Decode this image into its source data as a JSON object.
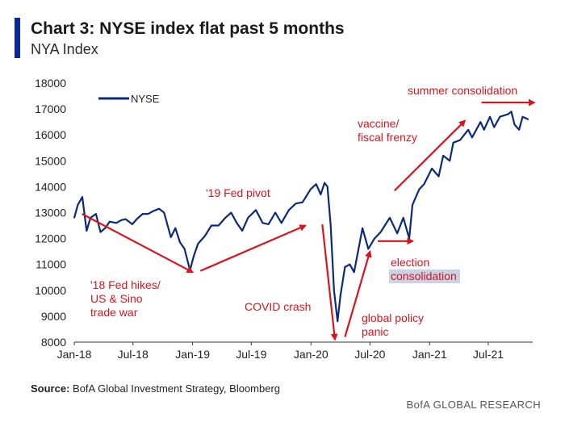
{
  "header": {
    "title": "Chart 3: NYSE index flat past 5 months",
    "subtitle": "NYA Index"
  },
  "colors": {
    "series": "#0b2a7a",
    "annotation": "#d9141e",
    "accent_bar": "#0a2896",
    "highlight": "#c8d4e6"
  },
  "chart_data": {
    "type": "line",
    "x_tick_labels": [
      "Jan-18",
      "Jul-18",
      "Jan-19",
      "Jul-19",
      "Jan-20",
      "Jul-20",
      "Jan-21",
      "Jul-21"
    ],
    "x_range": [
      "2018-01-01",
      "2021-11-15"
    ],
    "ylim": [
      8000,
      18000
    ],
    "y_ticks": [
      8000,
      9000,
      10000,
      11000,
      12000,
      13000,
      14000,
      15000,
      16000,
      17000,
      18000
    ],
    "grid": false,
    "legend": "top-left",
    "series": [
      {
        "name": "NYSE",
        "points": [
          [
            "2018-01-01",
            12800
          ],
          [
            "2018-01-12",
            13300
          ],
          [
            "2018-01-26",
            13600
          ],
          [
            "2018-02-08",
            12300
          ],
          [
            "2018-02-20",
            12800
          ],
          [
            "2018-03-09",
            12950
          ],
          [
            "2018-03-23",
            12250
          ],
          [
            "2018-04-06",
            12400
          ],
          [
            "2018-04-20",
            12650
          ],
          [
            "2018-05-11",
            12600
          ],
          [
            "2018-05-25",
            12700
          ],
          [
            "2018-06-08",
            12750
          ],
          [
            "2018-06-29",
            12550
          ],
          [
            "2018-07-13",
            12750
          ],
          [
            "2018-07-31",
            12950
          ],
          [
            "2018-08-17",
            12950
          ],
          [
            "2018-08-31",
            13050
          ],
          [
            "2018-09-20",
            13150
          ],
          [
            "2018-10-05",
            13000
          ],
          [
            "2018-10-26",
            12050
          ],
          [
            "2018-11-09",
            12400
          ],
          [
            "2018-11-23",
            11850
          ],
          [
            "2018-12-07",
            11600
          ],
          [
            "2018-12-24",
            10770
          ],
          [
            "2019-01-04",
            11300
          ],
          [
            "2019-01-18",
            11800
          ],
          [
            "2019-02-08",
            12100
          ],
          [
            "2019-02-28",
            12500
          ],
          [
            "2019-03-22",
            12500
          ],
          [
            "2019-04-12",
            12800
          ],
          [
            "2019-04-30",
            13000
          ],
          [
            "2019-05-17",
            12600
          ],
          [
            "2019-06-03",
            12300
          ],
          [
            "2019-06-21",
            12800
          ],
          [
            "2019-07-15",
            13100
          ],
          [
            "2019-08-05",
            12600
          ],
          [
            "2019-08-23",
            12550
          ],
          [
            "2019-09-13",
            13000
          ],
          [
            "2019-10-02",
            12600
          ],
          [
            "2019-10-25",
            13100
          ],
          [
            "2019-11-15",
            13350
          ],
          [
            "2019-12-06",
            13400
          ],
          [
            "2019-12-31",
            13900
          ],
          [
            "2020-01-17",
            14100
          ],
          [
            "2020-01-31",
            13700
          ],
          [
            "2020-02-12",
            14150
          ],
          [
            "2020-02-21",
            14000
          ],
          [
            "2020-03-02",
            12500
          ],
          [
            "2020-03-12",
            10000
          ],
          [
            "2020-03-23",
            8800
          ],
          [
            "2020-04-01",
            9800
          ],
          [
            "2020-04-15",
            10900
          ],
          [
            "2020-04-30",
            11000
          ],
          [
            "2020-05-13",
            10700
          ],
          [
            "2020-06-08",
            12400
          ],
          [
            "2020-06-26",
            11600
          ],
          [
            "2020-07-15",
            12000
          ],
          [
            "2020-08-03",
            12250
          ],
          [
            "2020-08-31",
            12800
          ],
          [
            "2020-09-23",
            12200
          ],
          [
            "2020-10-12",
            12800
          ],
          [
            "2020-10-30",
            12000
          ],
          [
            "2020-11-09",
            13300
          ],
          [
            "2020-11-30",
            13900
          ],
          [
            "2020-12-15",
            14100
          ],
          [
            "2021-01-08",
            14700
          ],
          [
            "2021-01-29",
            14400
          ],
          [
            "2021-02-12",
            15200
          ],
          [
            "2021-03-04",
            15000
          ],
          [
            "2021-03-15",
            15700
          ],
          [
            "2021-04-05",
            15800
          ],
          [
            "2021-04-30",
            16200
          ],
          [
            "2021-05-12",
            15900
          ],
          [
            "2021-06-07",
            16500
          ],
          [
            "2021-06-18",
            16200
          ],
          [
            "2021-07-06",
            16700
          ],
          [
            "2021-07-19",
            16300
          ],
          [
            "2021-08-06",
            16700
          ],
          [
            "2021-08-31",
            16800
          ],
          [
            "2021-09-10",
            16900
          ],
          [
            "2021-09-20",
            16400
          ],
          [
            "2021-10-04",
            16200
          ],
          [
            "2021-10-15",
            16700
          ],
          [
            "2021-11-01",
            16600
          ]
        ]
      }
    ],
    "annotations": [
      {
        "text": "'18 Fed hikes/\nUS & Sino\ntrade war",
        "arrow_from": [
          "2018-01-25",
          12950
        ],
        "arrow_to": [
          "2019-01-01",
          10700
        ]
      },
      {
        "text": "'19 Fed pivot",
        "arrow_from": [
          "2019-01-25",
          10750
        ],
        "arrow_to": [
          "2019-12-15",
          12500
        ]
      },
      {
        "text": "COVID crash",
        "arrow_from": [
          "2020-02-05",
          12550
        ],
        "arrow_to": [
          "2020-03-15",
          8100
        ]
      },
      {
        "text": "global policy\npanic",
        "arrow_from": [
          "2020-04-15",
          8200
        ],
        "arrow_to": [
          "2020-07-01",
          11500
        ]
      },
      {
        "text": "election\nconsolidation",
        "arrow_from": [
          "2020-07-25",
          11900
        ],
        "arrow_to": [
          "2020-11-10",
          11900
        ]
      },
      {
        "text": "vaccine/\nfiscal frenzy",
        "arrow_from": [
          "2020-09-15",
          13850
        ],
        "arrow_to": [
          "2021-04-20",
          16550
        ]
      },
      {
        "text": "summer consolidation",
        "arrow_from": [
          "2021-06-10",
          17250
        ],
        "arrow_to": [
          "2021-11-20",
          17250
        ]
      }
    ]
  },
  "footer": {
    "source_label": "Source:",
    "source_text": " BofA Global Investment Strategy, Bloomberg",
    "brand": "BofA GLOBAL RESEARCH"
  }
}
